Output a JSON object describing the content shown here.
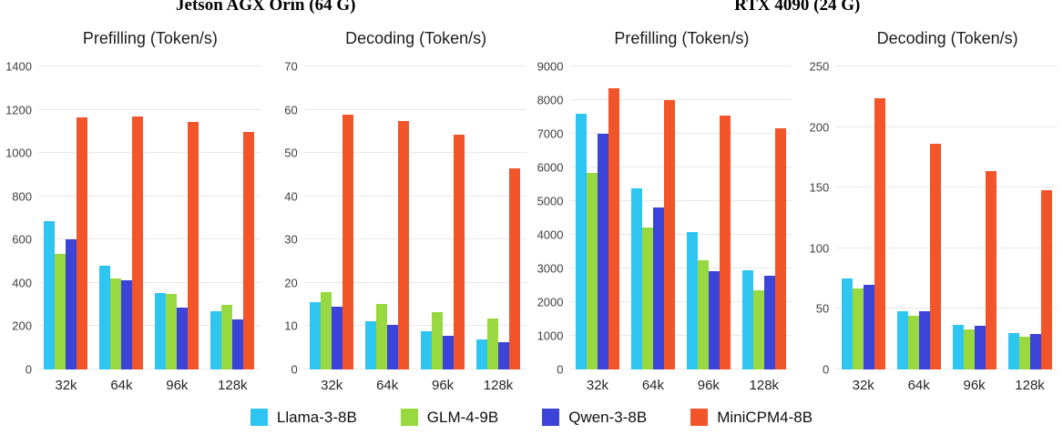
{
  "hardware_titles": [
    {
      "label": "Jetson AGX Orin (64 G)"
    },
    {
      "label": "RTX 4090 (24 G)"
    }
  ],
  "legend": {
    "position": "bottom",
    "entries": [
      {
        "label": "Llama-3-8B",
        "color": "#2ec6f0"
      },
      {
        "label": "GLM-4-9B",
        "color": "#97d93e"
      },
      {
        "label": "Qwen-3-8B",
        "color": "#3b43d8"
      },
      {
        "label": "MiniCPM4-8B",
        "color": "#f2552a"
      }
    ]
  },
  "chart_data": [
    {
      "type": "bar",
      "hardware": "Jetson AGX Orin (64 G)",
      "title": "Prefilling (Token/s)",
      "xlabel": "",
      "ylabel": "Token/s",
      "ylim": [
        0,
        1400
      ],
      "ystep": 200,
      "grid": true,
      "categories": [
        "32k",
        "64k",
        "96k",
        "128k"
      ],
      "series": [
        {
          "name": "Llama-3-8B",
          "values": [
            685,
            480,
            353,
            270
          ]
        },
        {
          "name": "GLM-4-9B",
          "values": [
            535,
            420,
            350,
            297
          ]
        },
        {
          "name": "Qwen-3-8B",
          "values": [
            600,
            410,
            288,
            230
          ]
        },
        {
          "name": "MiniCPM4-8B",
          "values": [
            1165,
            1167,
            1145,
            1098
          ]
        }
      ]
    },
    {
      "type": "bar",
      "hardware": "Jetson AGX Orin (64 G)",
      "title": "Decoding (Token/s)",
      "xlabel": "",
      "ylabel": "Token/s",
      "ylim": [
        0,
        70
      ],
      "ystep": 10,
      "grid": true,
      "categories": [
        "32k",
        "64k",
        "96k",
        "128k"
      ],
      "series": [
        {
          "name": "Llama-3-8B",
          "values": [
            15.6,
            11.1,
            8.8,
            7.0
          ]
        },
        {
          "name": "GLM-4-9B",
          "values": [
            17.9,
            15.2,
            13.3,
            11.7
          ]
        },
        {
          "name": "Qwen-3-8B",
          "values": [
            14.5,
            10.2,
            7.8,
            6.4
          ]
        },
        {
          "name": "MiniCPM4-8B",
          "values": [
            58.8,
            57.4,
            54.3,
            46.4
          ]
        }
      ]
    },
    {
      "type": "bar",
      "hardware": "RTX 4090 (24 G)",
      "title": "Prefilling (Token/s)",
      "xlabel": "",
      "ylabel": "Token/s",
      "ylim": [
        0,
        9000
      ],
      "ystep": 1000,
      "grid": true,
      "categories": [
        "32k",
        "64k",
        "96k",
        "128k"
      ],
      "series": [
        {
          "name": "Llama-3-8B",
          "values": [
            7600,
            5370,
            4090,
            2940
          ]
        },
        {
          "name": "GLM-4-9B",
          "values": [
            5840,
            4210,
            3250,
            2360
          ]
        },
        {
          "name": "Qwen-3-8B",
          "values": [
            7000,
            4810,
            2910,
            2790
          ]
        },
        {
          "name": "MiniCPM4-8B",
          "values": [
            8350,
            8010,
            7540,
            7160
          ]
        }
      ]
    },
    {
      "type": "bar",
      "hardware": "RTX 4090 (24 G)",
      "title": "Decoding (Token/s)",
      "xlabel": "",
      "ylabel": "Token/s",
      "ylim": [
        0,
        250
      ],
      "ystep": 50,
      "grid": true,
      "categories": [
        "32k",
        "64k",
        "96k",
        "128k"
      ],
      "series": [
        {
          "name": "Llama-3-8B",
          "values": [
            75,
            48,
            37,
            30
          ]
        },
        {
          "name": "GLM-4-9B",
          "values": [
            67,
            44,
            33,
            27
          ]
        },
        {
          "name": "Qwen-3-8B",
          "values": [
            70,
            48,
            36,
            29
          ]
        },
        {
          "name": "MiniCPM4-8B",
          "values": [
            224,
            186,
            164,
            148
          ]
        }
      ]
    }
  ]
}
